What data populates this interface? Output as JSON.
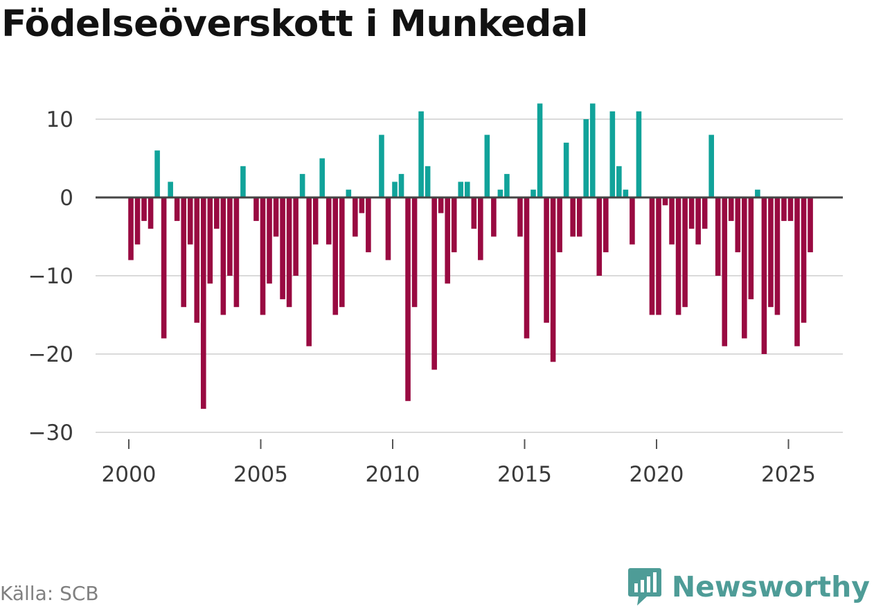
{
  "title": "Födelseöverskott i Munkedal",
  "source": "Källa: SCB",
  "brand": {
    "name": "Newsworthy",
    "icon": "newsworthy-logo-icon"
  },
  "colors": {
    "positive": "#11a39a",
    "negative": "#990a41",
    "grid": "#dadada",
    "zero": "#444444",
    "axis_text": "#3a3a3a"
  },
  "chart_data": {
    "type": "bar",
    "title": "Födelseöverskott i Munkedal",
    "xlabel": "",
    "ylabel": "",
    "frequency": "quarterly",
    "x_start": 2000.0,
    "x_step": 0.25,
    "xlim": [
      1999.25,
      2027.3
    ],
    "ylim": [
      -31,
      15
    ],
    "yticks": [
      10,
      0,
      -10,
      -20,
      -30
    ],
    "ytick_labels": [
      "10",
      "0",
      "−10",
      "−20",
      "−30"
    ],
    "xticks": [
      2000,
      2005,
      2010,
      2015,
      2020,
      2025
    ],
    "xtick_labels": [
      "2000",
      "2005",
      "2010",
      "2015",
      "2020",
      "2025"
    ],
    "values": [
      -8,
      -6,
      -3,
      -4,
      6,
      -18,
      2,
      -3,
      -14,
      -6,
      -16,
      -27,
      -11,
      -4,
      -15,
      -10,
      -14,
      4,
      0,
      -3,
      -15,
      -11,
      -5,
      -13,
      -14,
      -10,
      3,
      -19,
      -6,
      5,
      -6,
      -15,
      -14,
      1,
      -5,
      -2,
      -7,
      0,
      8,
      -8,
      2,
      3,
      -26,
      -14,
      11,
      4,
      -22,
      -2,
      -11,
      -7,
      2,
      2,
      -4,
      -8,
      8,
      -5,
      1,
      3,
      0,
      -5,
      -18,
      1,
      12,
      -16,
      -21,
      -7,
      7,
      -5,
      -5,
      10,
      12,
      -10,
      -7,
      11,
      4,
      1,
      -6,
      11,
      0,
      -15,
      -15,
      -1,
      -6,
      -15,
      -14,
      -4,
      -6,
      -4,
      8,
      -10,
      -19,
      -3,
      -7,
      -18,
      -13,
      1,
      -20,
      -14,
      -15,
      -3,
      -3,
      -19,
      -16,
      -7
    ]
  }
}
